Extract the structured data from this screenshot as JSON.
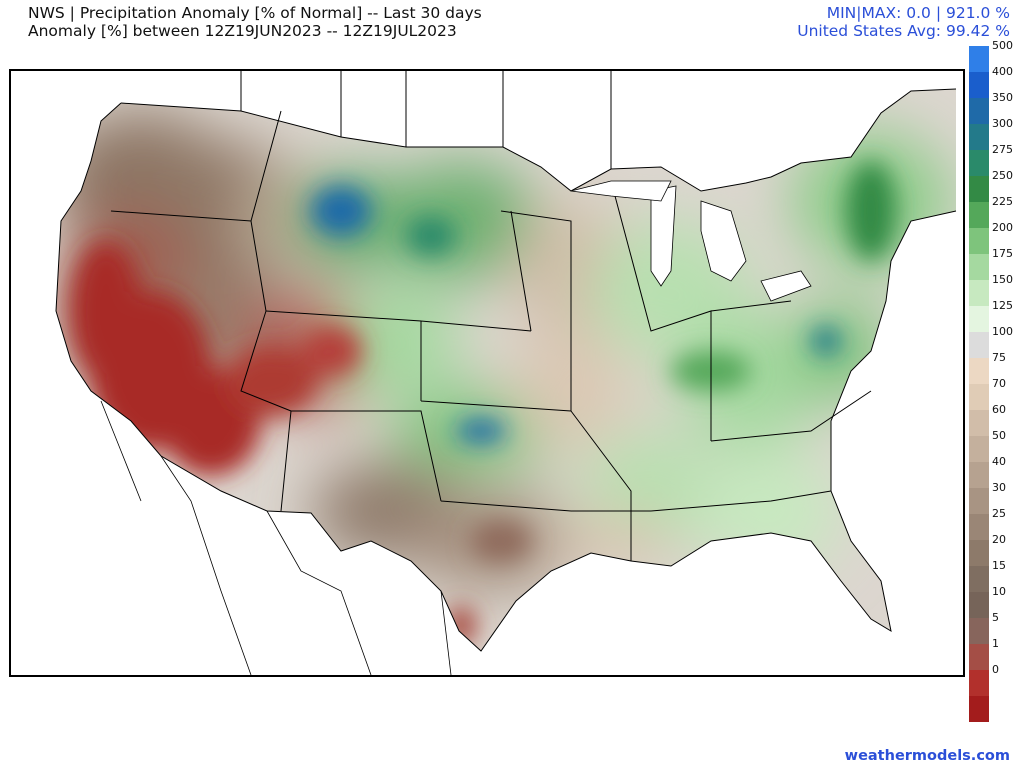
{
  "header": {
    "title_line1": "NWS | Precipitation Anomaly [% of Normal] -- Last 30 days",
    "title_line2": "Anomaly [%] between 12Z19JUN2023 -- 12Z19JUL2023",
    "minmax": "MIN|MAX: 0.0 | 921.0 %",
    "us_avg": "United States Avg: 99.42 %"
  },
  "colorbar": {
    "levels": [
      {
        "label": "",
        "color": "#a31c1c"
      },
      {
        "label": "0",
        "color": "#b2302c"
      },
      {
        "label": "1",
        "color": "#a44e46"
      },
      {
        "label": "5",
        "color": "#87655c"
      },
      {
        "label": "10",
        "color": "#766459"
      },
      {
        "label": "15",
        "color": "#7f6e61"
      },
      {
        "label": "20",
        "color": "#8d7a6a"
      },
      {
        "label": "25",
        "color": "#9a8676"
      },
      {
        "label": "30",
        "color": "#a89483"
      },
      {
        "label": "40",
        "color": "#b6a290"
      },
      {
        "label": "50",
        "color": "#c4b09d"
      },
      {
        "label": "60",
        "color": "#d1bda9"
      },
      {
        "label": "70",
        "color": "#e0ccb6"
      },
      {
        "label": "75",
        "color": "#ecd8c3"
      },
      {
        "label": "100",
        "color": "#dcdcdc"
      },
      {
        "label": "125",
        "color": "#e4f5e0"
      },
      {
        "label": "150",
        "color": "#c7e9c0"
      },
      {
        "label": "175",
        "color": "#a5d9a0"
      },
      {
        "label": "200",
        "color": "#7ec47c"
      },
      {
        "label": "225",
        "color": "#54a85a"
      },
      {
        "label": "250",
        "color": "#338a45"
      },
      {
        "label": "275",
        "color": "#2a8a6a"
      },
      {
        "label": "300",
        "color": "#237a8a"
      },
      {
        "label": "350",
        "color": "#1f6aa8"
      },
      {
        "label": "400",
        "color": "#1a5ecc"
      },
      {
        "label": "500",
        "color": "#2f7fe8"
      }
    ]
  },
  "footer": {
    "credit": "weathermodels.com"
  }
}
